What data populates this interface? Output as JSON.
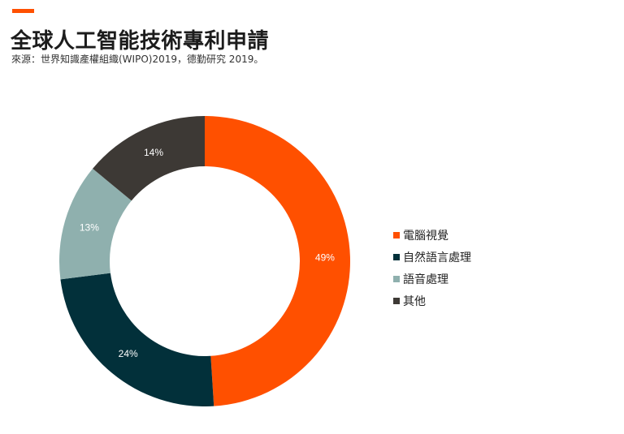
{
  "header": {
    "title": "全球人工智能技術專利申請",
    "source": "來源：世界知識產權組織(WIPO)2019，德勤研究 2019。"
  },
  "colors": {
    "accent": "#ff5000"
  },
  "chart_data": {
    "type": "pie",
    "donut": true,
    "title": "全球人工智能技術專利申請",
    "legend_position": "right",
    "slices": [
      {
        "label": "電腦視覺",
        "value": 49,
        "value_label": "49%",
        "color": "#ff5000"
      },
      {
        "label": "自然語言處理",
        "value": 24,
        "value_label": "24%",
        "color": "#02303a"
      },
      {
        "label": "語音處理",
        "value": 13,
        "value_label": "13%",
        "color": "#8fb0ae"
      },
      {
        "label": "其他",
        "value": 14,
        "value_label": "14%",
        "color": "#3d3935"
      }
    ]
  }
}
